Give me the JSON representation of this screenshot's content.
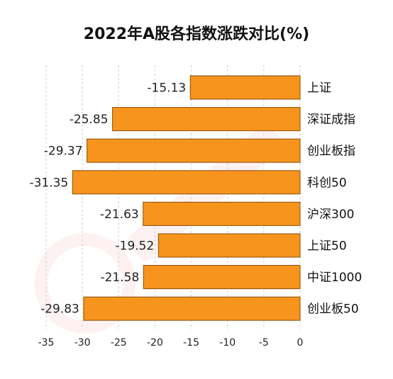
{
  "chart_data": {
    "type": "bar",
    "orientation": "horizontal",
    "title": "2022年A股各指数涨跌对比(%)",
    "categories": [
      "上证",
      "深证成指",
      "创业板指",
      "科创50",
      "沪深300",
      "上证50",
      "中证1000",
      "创业板50"
    ],
    "values": [
      -15.13,
      -25.85,
      -29.37,
      -31.35,
      -21.63,
      -19.52,
      -21.58,
      -29.83
    ],
    "value_labels": [
      "-15.13",
      "-25.85",
      "-29.37",
      "-31.35",
      "-21.63",
      "-19.52",
      "-21.58",
      "-29.83"
    ],
    "xlim": [
      -35,
      0
    ],
    "xticks": [
      -35,
      -30,
      -25,
      -20,
      -15,
      -10,
      -5,
      0
    ],
    "xtick_labels": [
      "-35",
      "-30",
      "-25",
      "-20",
      "-15",
      "-10",
      "-5",
      "0"
    ],
    "grid": "vertical-dashed",
    "bar_color": "#F7941D",
    "bar_stroke": "#8A4E08",
    "legend": "none"
  }
}
